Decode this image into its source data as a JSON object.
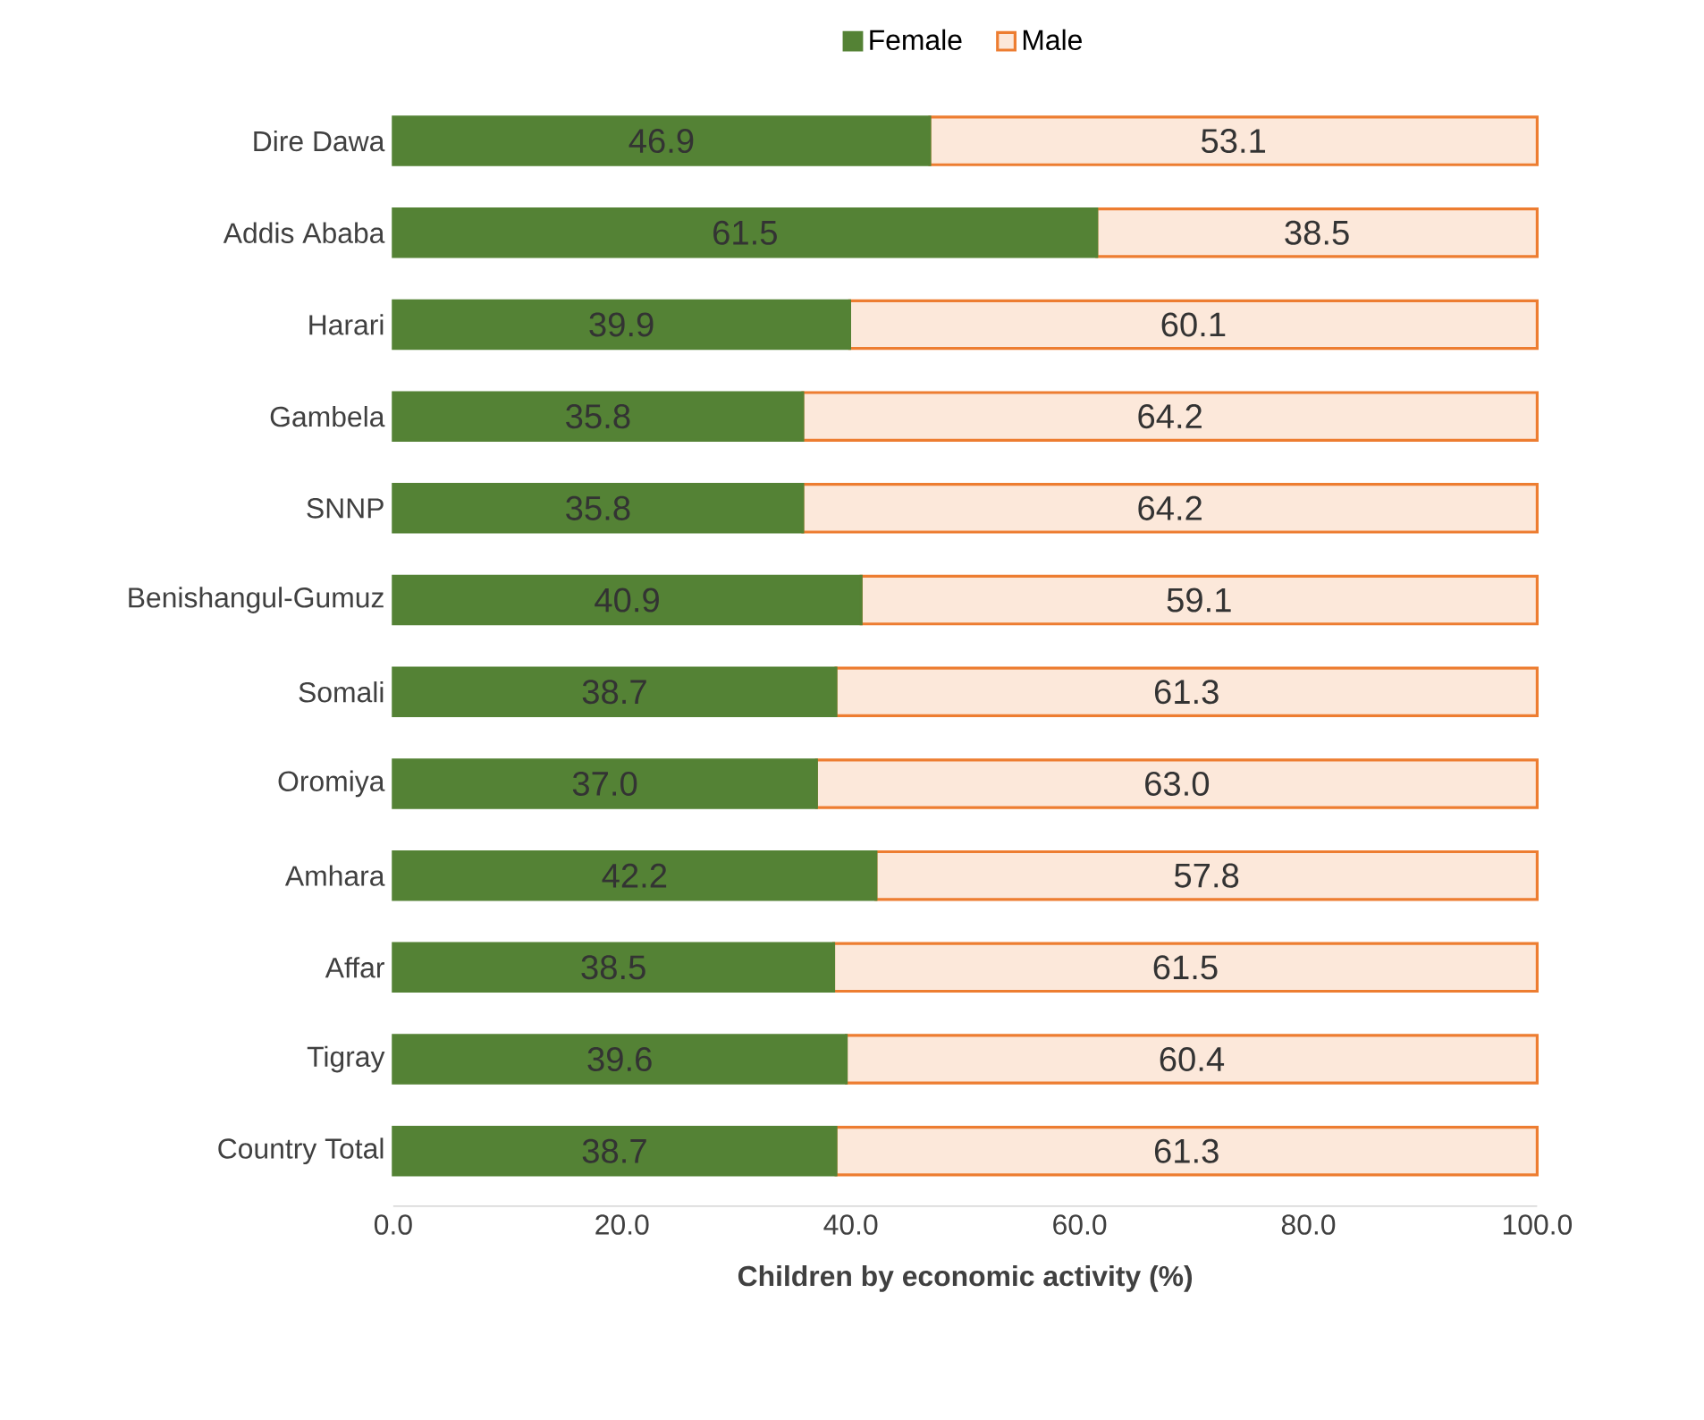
{
  "chart_data": {
    "type": "bar",
    "orientation": "horizontal",
    "stacked": true,
    "xlabel": "Children by economic activity (%)",
    "categories": [
      "Dire Dawa",
      "Addis Ababa",
      "Harari",
      "Gambela",
      "SNNP",
      "Benishangul-Gumuz",
      "Somali",
      "Oromiya",
      "Amhara",
      "Affar",
      "Tigray",
      "Country Total"
    ],
    "series": [
      {
        "name": "Female",
        "color": "#548235",
        "values": [
          46.9,
          61.5,
          39.9,
          35.8,
          35.8,
          40.9,
          38.7,
          37.0,
          42.2,
          38.5,
          39.6,
          38.7
        ],
        "value_labels": [
          "46.9",
          "61.5",
          "39.9",
          "35.8",
          "35.8",
          "40.9",
          "38.7",
          "37.0",
          "42.2",
          "38.5",
          "39.6",
          "38.7"
        ]
      },
      {
        "name": "Male",
        "color": "#ed7d31",
        "values": [
          53.1,
          38.5,
          60.1,
          64.2,
          64.2,
          59.1,
          61.3,
          63.0,
          57.8,
          61.5,
          60.4,
          61.3
        ],
        "value_labels": [
          "53.1",
          "38.5",
          "60.1",
          "64.2",
          "64.2",
          "59.1",
          "61.3",
          "63.0",
          "57.8",
          "61.5",
          "60.4",
          "61.3"
        ]
      }
    ],
    "xlim": [
      0,
      100
    ],
    "xticks": [
      {
        "value": 0,
        "label": "0.0"
      },
      {
        "value": 20,
        "label": "20.0"
      },
      {
        "value": 40,
        "label": "40.0"
      },
      {
        "value": 60,
        "label": "60.0"
      },
      {
        "value": 80,
        "label": "80.0"
      },
      {
        "value": 100,
        "label": "100.0"
      }
    ],
    "grid": false,
    "legend": "top"
  }
}
